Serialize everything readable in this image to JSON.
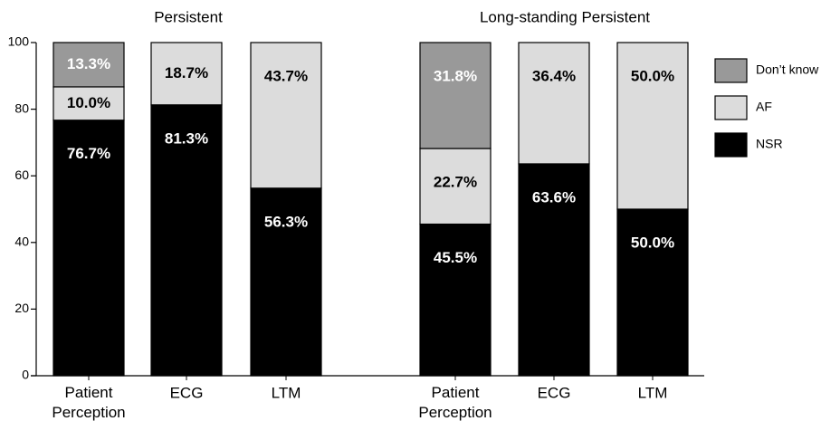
{
  "chart_data": {
    "type": "stacked-bar",
    "groups": [
      {
        "title": "Persistent",
        "categories": [
          "Patient Perception",
          "ECG",
          "LTM"
        ]
      },
      {
        "title": "Long-standing Persistent",
        "categories": [
          "Patient Perception",
          "ECG",
          "LTM"
        ]
      }
    ],
    "series": [
      {
        "name": "NSR",
        "color": "#000000",
        "label_color": "#ffffff",
        "values": [
          76.7,
          81.3,
          56.3,
          45.5,
          63.6,
          50.0
        ],
        "value_labels": [
          "76.7%",
          "81.3%",
          "56.3%",
          "45.5%",
          "63.6%",
          "50.0%"
        ]
      },
      {
        "name": "AF",
        "color": "#dcdcdc",
        "label_color": "#000000",
        "values": [
          10.0,
          18.7,
          43.7,
          22.7,
          36.4,
          50.0
        ],
        "value_labels": [
          "10.0%",
          "18.7%",
          "43.7%",
          "22.7%",
          "36.4%",
          "50.0%"
        ]
      },
      {
        "name": "Don’t know",
        "color": "#999999",
        "label_color": "#ffffff",
        "values": [
          13.3,
          null,
          null,
          31.8,
          null,
          null
        ],
        "value_labels": [
          "13.3%",
          null,
          null,
          "31.8%",
          null,
          null
        ]
      }
    ],
    "ylim": [
      0,
      100
    ],
    "yticks": [
      0,
      20,
      40,
      60,
      80,
      100
    ],
    "grid": false
  }
}
